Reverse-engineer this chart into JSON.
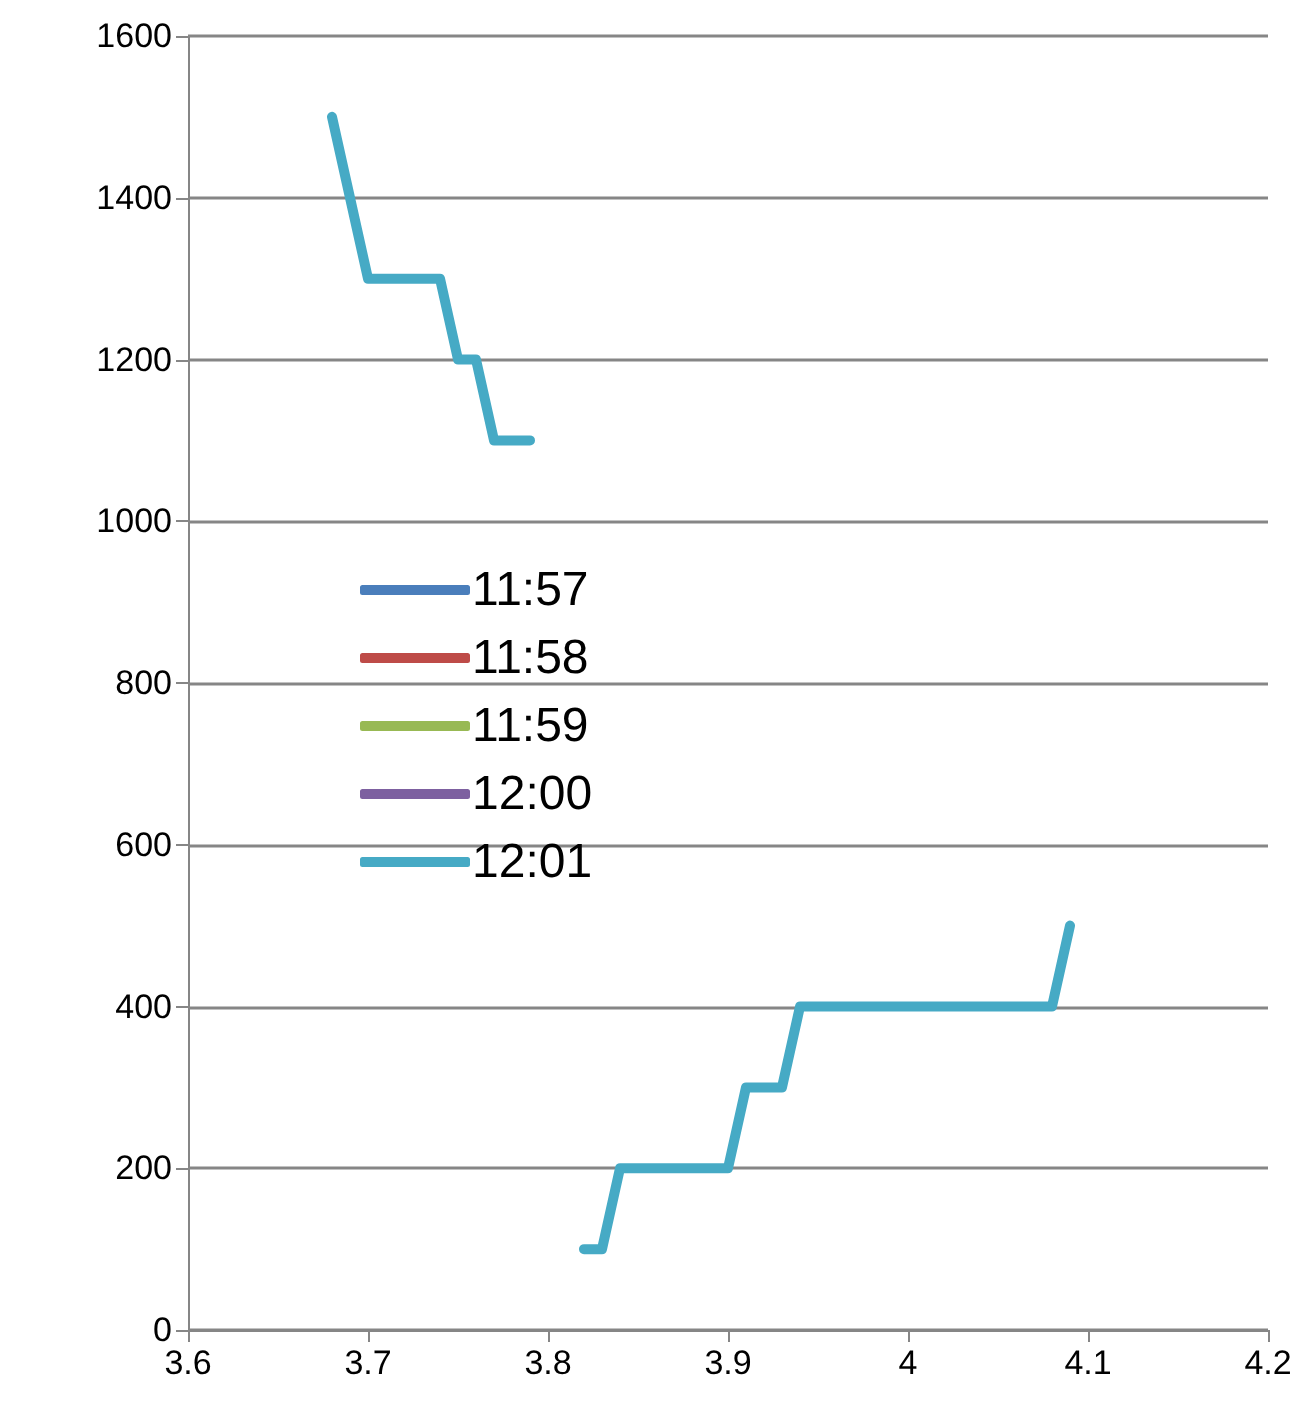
{
  "chart_data": {
    "type": "line",
    "x": [
      3.68,
      3.7,
      3.74,
      3.75,
      3.76,
      3.77,
      3.79,
      3.8,
      3.82,
      3.83,
      3.84,
      3.9,
      3.91,
      3.93,
      3.94,
      4.08,
      4.09
    ],
    "series": [
      {
        "name": "11:57",
        "color": "#4a7ebb",
        "values": [
          null,
          null,
          null,
          null,
          null,
          null,
          null,
          null,
          null,
          null,
          null,
          null,
          null,
          null,
          null,
          null,
          null
        ]
      },
      {
        "name": "11:58",
        "color": "#be4b48",
        "values": [
          null,
          null,
          null,
          null,
          null,
          null,
          null,
          null,
          null,
          null,
          null,
          null,
          null,
          null,
          null,
          null,
          null
        ]
      },
      {
        "name": "11:59",
        "color": "#98b954",
        "values": [
          null,
          null,
          null,
          null,
          null,
          null,
          null,
          null,
          null,
          null,
          null,
          null,
          null,
          null,
          null,
          null,
          null
        ]
      },
      {
        "name": "12:00",
        "color": "#7d60a0",
        "values": [
          null,
          null,
          null,
          null,
          null,
          null,
          null,
          null,
          null,
          null,
          null,
          null,
          null,
          null,
          null,
          null,
          null
        ]
      },
      {
        "name": "12:01",
        "color": "#46aac5",
        "values": [
          1500,
          1300,
          1300,
          1200,
          1200,
          1100,
          1100,
          null,
          100,
          100,
          200,
          200,
          300,
          300,
          400,
          400,
          500
        ]
      }
    ],
    "xlim": [
      3.6,
      4.2
    ],
    "xticks": [
      3.6,
      3.7,
      3.8,
      3.9,
      4,
      4.1,
      4.2
    ],
    "ylim": [
      0,
      1600
    ],
    "yticks": [
      0,
      200,
      400,
      600,
      800,
      1000,
      1200,
      1400,
      1600
    ],
    "grid": "y",
    "legend": "left",
    "marker": "none",
    "line_style": "solid"
  }
}
